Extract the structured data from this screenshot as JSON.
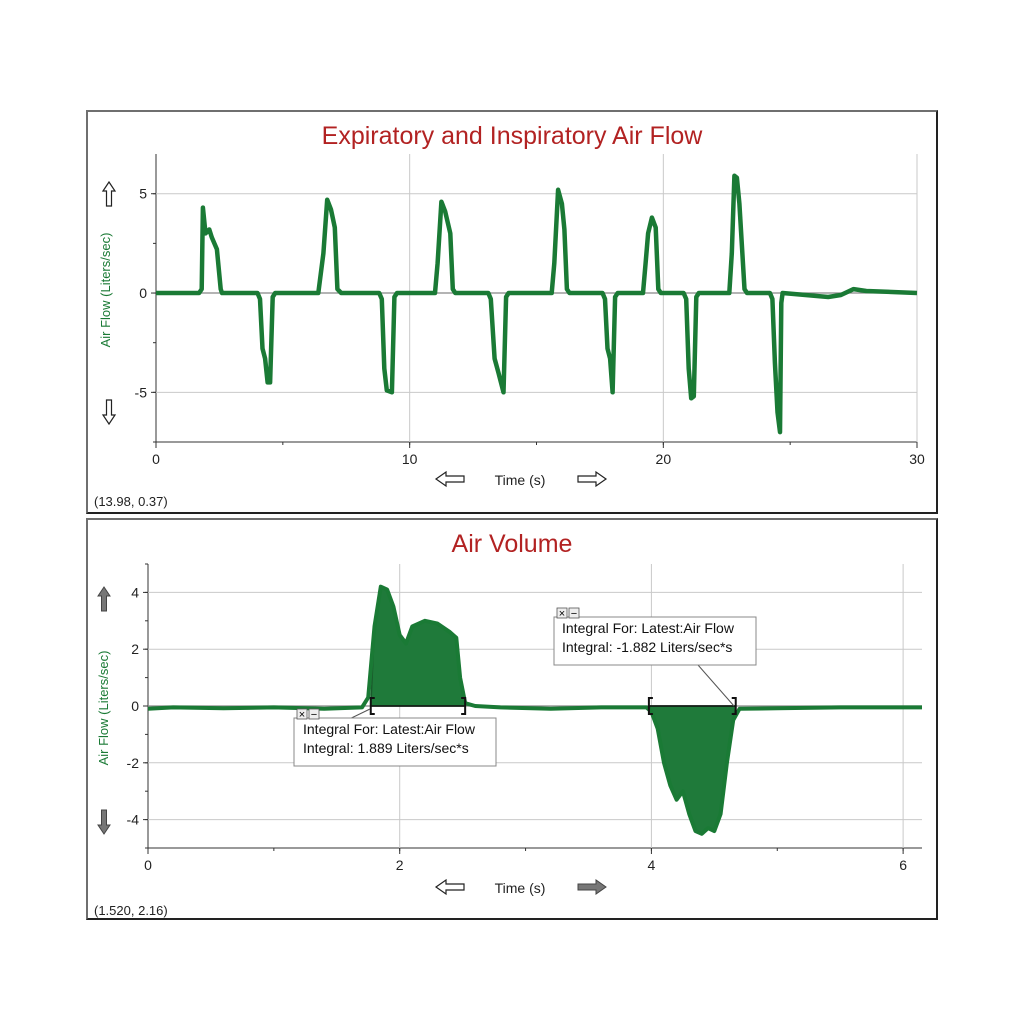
{
  "colors": {
    "title": "#b22222",
    "series": "#1a7a35",
    "fill": "#1f7a3a",
    "grid": "#c9c9c9",
    "ylabel": "#1a7a35"
  },
  "chart_data": [
    {
      "type": "line",
      "title": "Expiratory and Inspiratory Air Flow",
      "xlabel": "Time (s)",
      "ylabel": "Air Flow (Liters/sec)",
      "xlim": [
        0,
        30
      ],
      "ylim": [
        -7.5,
        7
      ],
      "x_ticks": [
        0,
        10,
        20,
        30
      ],
      "y_ticks": [
        5,
        0,
        -5
      ],
      "grid": true,
      "cursor_readout": "(13.98, 0.37)",
      "series": [
        {
          "points": [
            [
              0,
              0
            ],
            [
              1.7,
              0
            ],
            [
              1.8,
              0.2
            ],
            [
              1.85,
              4.3
            ],
            [
              1.95,
              3.0
            ],
            [
              2.1,
              3.2
            ],
            [
              2.2,
              2.8
            ],
            [
              2.4,
              2.2
            ],
            [
              2.55,
              0.2
            ],
            [
              2.6,
              0
            ],
            [
              4.0,
              0
            ],
            [
              4.1,
              -0.3
            ],
            [
              4.2,
              -2.8
            ],
            [
              4.3,
              -3.3
            ],
            [
              4.4,
              -4.5
            ],
            [
              4.5,
              -4.5
            ],
            [
              4.6,
              -0.2
            ],
            [
              4.7,
              0
            ],
            [
              6.4,
              0
            ],
            [
              6.6,
              2.0
            ],
            [
              6.75,
              4.7
            ],
            [
              6.9,
              4.2
            ],
            [
              7.05,
              3.3
            ],
            [
              7.15,
              0.2
            ],
            [
              7.3,
              0
            ],
            [
              8.8,
              0
            ],
            [
              8.9,
              -0.3
            ],
            [
              9.0,
              -3.8
            ],
            [
              9.1,
              -4.9
            ],
            [
              9.3,
              -5.0
            ],
            [
              9.4,
              -0.2
            ],
            [
              9.5,
              0
            ],
            [
              11.0,
              0
            ],
            [
              11.1,
              1.5
            ],
            [
              11.25,
              4.6
            ],
            [
              11.4,
              4.1
            ],
            [
              11.6,
              3.0
            ],
            [
              11.7,
              0.2
            ],
            [
              11.8,
              0
            ],
            [
              13.1,
              0
            ],
            [
              13.2,
              -0.3
            ],
            [
              13.35,
              -3.3
            ],
            [
              13.5,
              -4.0
            ],
            [
              13.7,
              -5.0
            ],
            [
              13.8,
              -0.2
            ],
            [
              13.9,
              0
            ],
            [
              15.6,
              0
            ],
            [
              15.7,
              1.5
            ],
            [
              15.85,
              5.2
            ],
            [
              16.0,
              4.5
            ],
            [
              16.1,
              3.2
            ],
            [
              16.2,
              0.2
            ],
            [
              16.3,
              0
            ],
            [
              17.6,
              0
            ],
            [
              17.7,
              -0.3
            ],
            [
              17.8,
              -2.8
            ],
            [
              17.9,
              -3.3
            ],
            [
              18.0,
              -5.0
            ],
            [
              18.1,
              -0.2
            ],
            [
              18.2,
              0
            ],
            [
              19.2,
              0
            ],
            [
              19.3,
              1.5
            ],
            [
              19.4,
              3.0
            ],
            [
              19.55,
              3.8
            ],
            [
              19.7,
              3.3
            ],
            [
              19.8,
              0.2
            ],
            [
              19.9,
              0
            ],
            [
              20.8,
              0
            ],
            [
              20.9,
              -0.3
            ],
            [
              21.0,
              -3.8
            ],
            [
              21.1,
              -5.3
            ],
            [
              21.2,
              -5.2
            ],
            [
              21.3,
              -0.2
            ],
            [
              21.4,
              0
            ],
            [
              22.6,
              0
            ],
            [
              22.7,
              2.0
            ],
            [
              22.8,
              5.9
            ],
            [
              22.9,
              5.8
            ],
            [
              23.0,
              4.5
            ],
            [
              23.2,
              0.2
            ],
            [
              23.3,
              0
            ],
            [
              24.2,
              0
            ],
            [
              24.3,
              -0.3
            ],
            [
              24.4,
              -3.5
            ],
            [
              24.5,
              -6.0
            ],
            [
              24.6,
              -7.0
            ],
            [
              24.65,
              -0.5
            ],
            [
              24.7,
              0
            ],
            [
              26.5,
              -0.2
            ],
            [
              27.0,
              -0.1
            ],
            [
              27.5,
              0.2
            ],
            [
              28.0,
              0.1
            ],
            [
              30,
              0
            ]
          ]
        }
      ]
    },
    {
      "type": "area",
      "title": "Air Volume",
      "xlabel": "Time (s)",
      "ylabel": "Air Flow (Liters/sec)",
      "xlim": [
        0,
        6.15
      ],
      "ylim": [
        -5,
        5
      ],
      "x_ticks": [
        0,
        2,
        4,
        6
      ],
      "y_ticks": [
        4,
        2,
        0,
        -2,
        -4
      ],
      "grid": true,
      "cursor_readout": "(1.520, 2.16)",
      "series": [
        {
          "points": [
            [
              0,
              -0.1
            ],
            [
              0.2,
              -0.05
            ],
            [
              0.6,
              -0.08
            ],
            [
              1.0,
              -0.05
            ],
            [
              1.4,
              -0.1
            ],
            [
              1.7,
              -0.05
            ],
            [
              1.75,
              0.3
            ],
            [
              1.8,
              2.8
            ],
            [
              1.85,
              4.2
            ],
            [
              1.9,
              4.1
            ],
            [
              1.95,
              3.5
            ],
            [
              2.0,
              2.5
            ],
            [
              2.05,
              2.2
            ],
            [
              2.1,
              2.8
            ],
            [
              2.2,
              3.0
            ],
            [
              2.3,
              2.9
            ],
            [
              2.4,
              2.6
            ],
            [
              2.45,
              2.4
            ],
            [
              2.48,
              1.0
            ],
            [
              2.52,
              0.1
            ],
            [
              2.6,
              0.0
            ],
            [
              2.8,
              -0.05
            ],
            [
              3.2,
              -0.1
            ],
            [
              3.6,
              -0.05
            ],
            [
              3.96,
              -0.05
            ],
            [
              4.0,
              -0.2
            ],
            [
              4.05,
              -0.8
            ],
            [
              4.1,
              -2.0
            ],
            [
              4.15,
              -2.8
            ],
            [
              4.2,
              -3.3
            ],
            [
              4.25,
              -3.0
            ],
            [
              4.3,
              -3.8
            ],
            [
              4.35,
              -4.4
            ],
            [
              4.4,
              -4.5
            ],
            [
              4.45,
              -4.3
            ],
            [
              4.5,
              -4.4
            ],
            [
              4.55,
              -3.8
            ],
            [
              4.6,
              -2.0
            ],
            [
              4.65,
              -0.5
            ],
            [
              4.7,
              -0.1
            ],
            [
              5.0,
              -0.08
            ],
            [
              5.5,
              -0.05
            ],
            [
              6.15,
              -0.05
            ]
          ]
        }
      ],
      "integrals": [
        {
          "x_range": [
            1.77,
            2.52
          ],
          "line1": "Integral For: Latest:Air Flow",
          "line2": "Integral: 1.889 Liters/sec*s"
        },
        {
          "x_range": [
            3.98,
            4.67
          ],
          "line1": "Integral For: Latest:Air Flow",
          "line2": "Integral: -1.882 Liters/sec*s"
        }
      ]
    }
  ],
  "ui": {
    "close_glyph": "×",
    "minimize_glyph": "−",
    "icons": [
      "arrow-up-icon",
      "arrow-down-icon",
      "arrow-left-icon",
      "arrow-right-icon"
    ]
  }
}
